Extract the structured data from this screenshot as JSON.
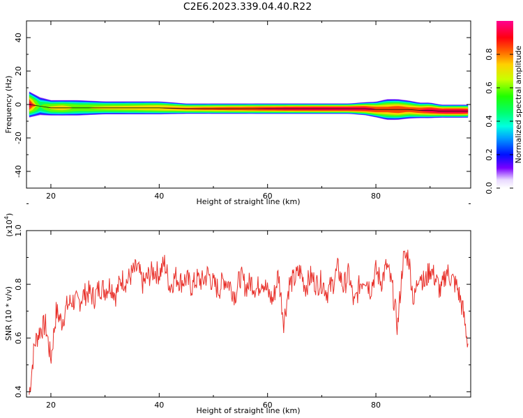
{
  "title": "C2E6.2023.339.04.40.R22",
  "chart_data": [
    {
      "type": "heatmap",
      "xlabel": "Height of straight line (km)",
      "ylabel": "Frequency (Hz)",
      "xlim": [
        15.5,
        97.5
      ],
      "ylim": [
        -50,
        50
      ],
      "x_ticks": [
        20,
        40,
        60,
        80
      ],
      "y_ticks": [
        -40,
        -20,
        0,
        20,
        40
      ],
      "colormap": "hsv",
      "colorbar": {
        "label": "Normalized spectral amplitude",
        "range": [
          0,
          1
        ],
        "ticks": [
          "0.0",
          "0.2",
          "0.4",
          "0.6",
          "0.8"
        ]
      },
      "band": {
        "x": [
          16,
          18,
          20,
          22,
          25,
          30,
          35,
          40,
          45,
          50,
          55,
          60,
          65,
          70,
          75,
          78,
          80,
          82,
          84,
          86,
          88,
          90,
          92,
          94,
          96,
          97
        ],
        "center_freq": [
          0,
          -1,
          -2,
          -2,
          -2,
          -2,
          -2,
          -2,
          -2.5,
          -2.5,
          -2.5,
          -2.5,
          -2.5,
          -2.5,
          -2.5,
          -2.5,
          -3,
          -3,
          -3,
          -3,
          -3.5,
          -3.5,
          -4,
          -4,
          -4,
          -4
        ],
        "half_width": [
          5,
          3.5,
          3,
          3,
          3,
          2.5,
          2.5,
          2.5,
          2,
          2,
          2,
          2,
          2,
          2,
          2,
          2.5,
          3,
          4,
          4,
          3.5,
          3,
          3,
          2.5,
          2.5,
          2.5,
          2.5
        ],
        "peak_amplitude": [
          0.95,
          0.55,
          0.7,
          0.75,
          0.65,
          0.72,
          0.75,
          0.8,
          0.82,
          0.85,
          0.88,
          0.92,
          0.95,
          0.97,
          0.98,
          0.95,
          0.9,
          0.85,
          0.9,
          0.85,
          0.9,
          0.95,
          0.97,
          0.98,
          0.98,
          0.95
        ]
      }
    },
    {
      "type": "line",
      "xlabel": "Height of straight line (km)",
      "ylabel": "SNR (10 * v/v)",
      "y_multiplier": "(x10",
      "y_multiplier_exp": "4",
      "xlim": [
        15.5,
        97.5
      ],
      "ylim": [
        0.38,
        1.0
      ],
      "x_ticks": [
        20,
        40,
        60,
        80
      ],
      "y_ticks": [
        "0.4",
        "0.6",
        "0.8",
        "1.0"
      ],
      "series": [
        {
          "color": "#e8302a",
          "x": [
            16,
            17,
            18,
            19,
            20,
            21,
            22,
            23,
            24,
            25,
            26,
            27,
            28,
            29,
            30,
            31,
            32,
            33,
            34,
            35,
            36,
            37,
            38,
            39,
            40,
            41,
            42,
            43,
            44,
            45,
            46,
            47,
            48,
            49,
            50,
            51,
            52,
            53,
            54,
            55,
            56,
            57,
            58,
            59,
            60,
            61,
            62,
            63,
            64,
            65,
            66,
            67,
            68,
            69,
            70,
            71,
            72,
            73,
            74,
            75,
            76,
            77,
            78,
            79,
            80,
            81,
            82,
            83,
            84,
            85,
            86,
            87,
            88,
            89,
            90,
            91,
            92,
            93,
            94,
            95,
            96,
            97
          ],
          "y": [
            0.39,
            0.58,
            0.63,
            0.65,
            0.52,
            0.7,
            0.66,
            0.72,
            0.74,
            0.73,
            0.76,
            0.77,
            0.75,
            0.79,
            0.78,
            0.8,
            0.76,
            0.82,
            0.81,
            0.84,
            0.86,
            0.8,
            0.83,
            0.85,
            0.84,
            0.88,
            0.79,
            0.83,
            0.81,
            0.82,
            0.79,
            0.82,
            0.81,
            0.84,
            0.8,
            0.78,
            0.82,
            0.8,
            0.76,
            0.83,
            0.79,
            0.81,
            0.78,
            0.82,
            0.77,
            0.74,
            0.84,
            0.66,
            0.8,
            0.82,
            0.85,
            0.79,
            0.83,
            0.8,
            0.81,
            0.77,
            0.8,
            0.86,
            0.79,
            0.84,
            0.72,
            0.8,
            0.83,
            0.78,
            0.85,
            0.81,
            0.87,
            0.79,
            0.64,
            0.89,
            0.91,
            0.73,
            0.85,
            0.8,
            0.86,
            0.82,
            0.77,
            0.85,
            0.82,
            0.79,
            0.71,
            0.58
          ]
        }
      ]
    }
  ]
}
